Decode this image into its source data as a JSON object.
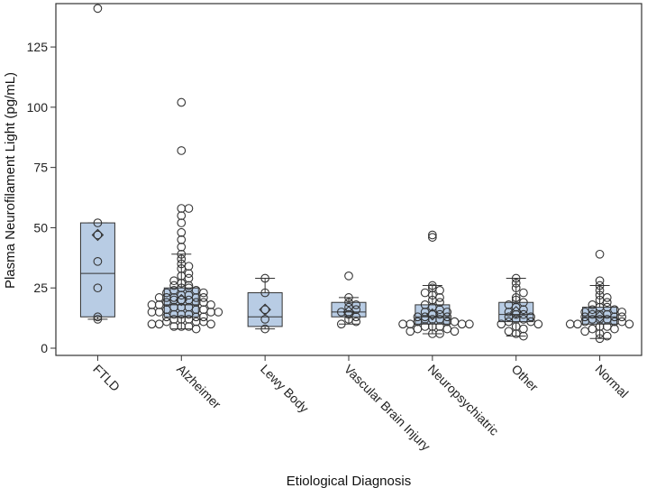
{
  "chart_data": {
    "type": "box",
    "xlabel": "Etiological Diagnosis",
    "ylabel": "Plasma Neurofilament Light (pg/mL)",
    "ylim": [
      -3,
      143
    ],
    "yticks": [
      0,
      25,
      50,
      75,
      100,
      125
    ],
    "grid": false,
    "legend": "none",
    "colors": {
      "box_fill": "#b8cce4",
      "stroke": "#333333",
      "point": "#333333"
    },
    "categories": [
      "FTLD",
      "Alzheimer",
      "Lewy Body",
      "Vascular Brain Injury",
      "Neuropsychiatric",
      "Other",
      "Normal"
    ],
    "boxes": [
      {
        "category": "FTLD",
        "q1": 13,
        "median": 31,
        "q3": 52,
        "whisker_low": 12,
        "whisker_high": 52,
        "mean": 47,
        "points": [
          141,
          52,
          47,
          36,
          25,
          13,
          12
        ]
      },
      {
        "category": "Alzheimer",
        "q1": 13,
        "median": 18,
        "q3": 25,
        "whisker_low": 8,
        "whisker_high": 39,
        "mean": 20,
        "points": [
          102,
          82,
          58,
          58,
          55,
          52,
          48,
          45,
          42,
          39,
          37,
          35,
          34,
          33,
          31,
          30,
          29,
          28,
          27,
          26,
          26,
          25,
          25,
          24,
          24,
          23,
          23,
          22,
          22,
          21,
          21,
          21,
          21,
          21,
          20,
          20,
          20,
          19,
          19,
          19,
          18,
          18,
          18,
          17,
          17,
          17,
          16,
          16,
          16,
          15,
          15,
          15,
          15,
          14,
          14,
          14,
          13,
          13,
          13,
          12,
          12,
          12,
          11,
          11,
          11,
          10,
          10,
          10,
          9,
          9,
          9,
          8
        ]
      },
      {
        "category": "Lewy Body",
        "q1": 9,
        "median": 13,
        "q3": 23,
        "whisker_low": 8,
        "whisker_high": 29,
        "mean": 16,
        "points": [
          29,
          23,
          16,
          12,
          8
        ]
      },
      {
        "category": "Vascular Brain Injury",
        "q1": 13,
        "median": 15,
        "q3": 19,
        "whisker_low": 10,
        "whisker_high": 21,
        "mean": 15,
        "points": [
          30,
          21,
          19,
          18,
          17,
          16,
          15,
          14,
          13,
          12,
          11,
          10
        ]
      },
      {
        "category": "Neuropsychiatric",
        "q1": 10,
        "median": 13,
        "q3": 18,
        "whisker_low": 6,
        "whisker_high": 26,
        "mean": 14,
        "points": [
          47,
          46,
          26,
          25,
          24,
          23,
          22,
          21,
          20,
          19,
          18,
          17,
          16,
          15,
          15,
          14,
          14,
          13,
          13,
          13,
          12,
          12,
          12,
          11,
          11,
          11,
          10,
          10,
          10,
          10,
          9,
          9,
          9,
          8,
          8,
          7,
          7,
          6,
          6
        ]
      },
      {
        "category": "Other",
        "q1": 11,
        "median": 14,
        "q3": 19,
        "whisker_low": 5,
        "whisker_high": 29,
        "mean": 15,
        "points": [
          29,
          27,
          25,
          23,
          21,
          20,
          19,
          18,
          17,
          16,
          15,
          14,
          14,
          13,
          13,
          12,
          12,
          11,
          11,
          10,
          10,
          9,
          8,
          7,
          6,
          5
        ]
      },
      {
        "category": "Normal",
        "q1": 10,
        "median": 13,
        "q3": 17,
        "whisker_low": 4,
        "whisker_high": 26,
        "mean": 13,
        "points": [
          39,
          28,
          26,
          24,
          22,
          21,
          20,
          19,
          18,
          17,
          17,
          16,
          16,
          15,
          15,
          14,
          14,
          14,
          13,
          13,
          13,
          12,
          12,
          12,
          11,
          11,
          11,
          10,
          10,
          10,
          9,
          9,
          8,
          8,
          7,
          6,
          5,
          4
        ]
      }
    ]
  }
}
